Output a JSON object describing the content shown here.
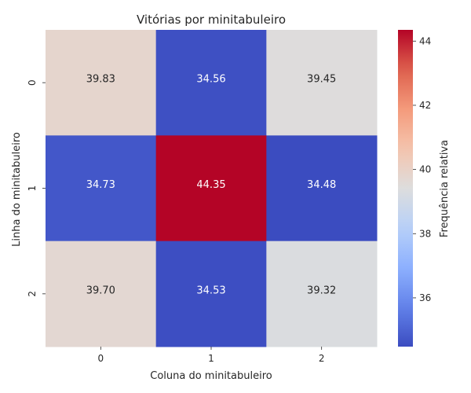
{
  "chart_data": {
    "type": "heatmap",
    "title": "Vitórias por minitabuleiro",
    "xlabel": "Coluna do minitabuleiro",
    "ylabel": "Linha do minitabuleiro",
    "x_categories": [
      "0",
      "1",
      "2"
    ],
    "y_categories": [
      "0",
      "1",
      "2"
    ],
    "values": [
      [
        39.83,
        34.56,
        39.45
      ],
      [
        34.73,
        44.35,
        34.48
      ],
      [
        39.7,
        34.53,
        39.32
      ]
    ],
    "value_labels": [
      [
        "39.83",
        "34.56",
        "39.45"
      ],
      [
        "34.73",
        "44.35",
        "34.48"
      ],
      [
        "39.70",
        "34.53",
        "39.32"
      ]
    ],
    "colormap": "coolwarm",
    "color_range": [
      34.48,
      44.35
    ],
    "colorbar": {
      "label": "Frequência relativa",
      "ticks": [
        36,
        38,
        40,
        42,
        44
      ],
      "tick_labels": [
        "36",
        "38",
        "40",
        "42",
        "44"
      ]
    },
    "grid": false,
    "legend": "colorbar-right"
  }
}
